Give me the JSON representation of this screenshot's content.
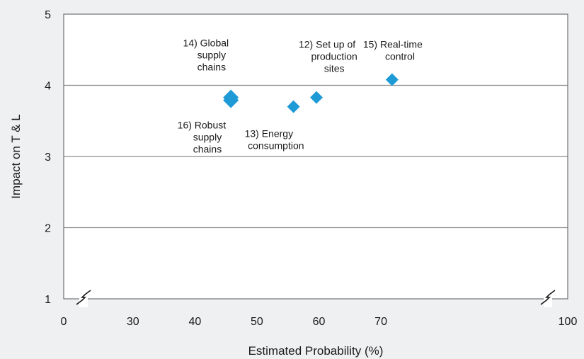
{
  "chart_data": {
    "type": "scatter",
    "title": "",
    "xlabel": "Estimated Probability (%)",
    "ylabel": "Impact on T & L",
    "x_ticks": [
      0,
      30,
      40,
      50,
      60,
      70,
      100
    ],
    "y_ticks": [
      1,
      2,
      3,
      4,
      5
    ],
    "xlim_segment": [
      25,
      95
    ],
    "ylim": [
      1,
      5
    ],
    "x_axis_broken": true,
    "grid": "horizontal",
    "marker": "diamond",
    "colors": {
      "marker": "#1e9ad6",
      "grid": "#8c8c8c",
      "plot_bg": "#ffffff",
      "page_bg": "#eef0f2"
    },
    "points": [
      {
        "label": [
          "14) Global",
          "supply",
          "chains"
        ],
        "x": 45.8,
        "y": 3.83,
        "align": "right"
      },
      {
        "label": [
          "16) Robust",
          "supply",
          "chains"
        ],
        "x": 45.8,
        "y": 3.79,
        "align": "right"
      },
      {
        "label": [
          "13) Energy",
          "consumption"
        ],
        "x": 55.9,
        "y": 3.7,
        "align": "left"
      },
      {
        "label": [
          "12) Set up of",
          "production",
          "sites"
        ],
        "x": 59.6,
        "y": 3.83,
        "align": "left"
      },
      {
        "label": [
          "15) Real-time",
          "control"
        ],
        "x": 71.8,
        "y": 4.08,
        "align": "left"
      }
    ]
  }
}
